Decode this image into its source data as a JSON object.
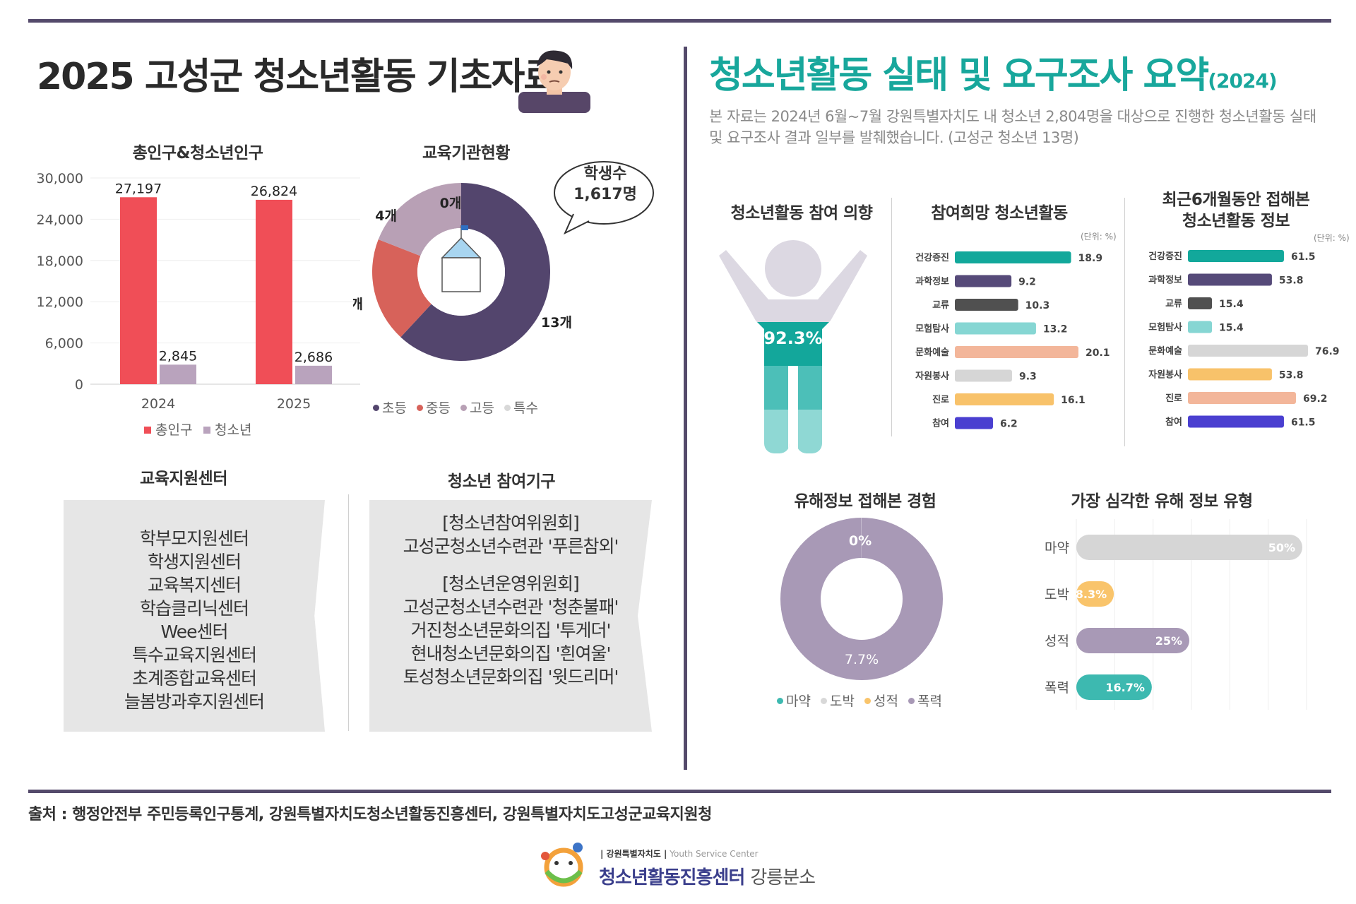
{
  "header": {
    "left_title": "2025 고성군 청소년활동 기초자료",
    "right_title": "청소년활동 실태 및 요구조사 요약",
    "right_title_year": "(2024)",
    "intro": "본 자료는 2024년 6월~7월 강원특별자치도 내 청소년 2,804명을 대상으로 진행한 청소년활동 실태 및 요구조사 결과 일부를 발췌했습니다. (고성군 청소년 13명)"
  },
  "population": {
    "title": "총인구&청소년인구",
    "y_ticks": [
      "30,000",
      "24,000",
      "18,000",
      "12,000",
      "6,000",
      "0"
    ],
    "categories": [
      "2024",
      "2025"
    ],
    "legend": [
      "총인구",
      "청소년"
    ],
    "colors": [
      "#f04e57",
      "#b9a3bd"
    ],
    "labels": [
      [
        "27,197",
        "2,845"
      ],
      [
        "26,824",
        "2,686"
      ]
    ]
  },
  "institutions": {
    "title": "교육기관현황",
    "bubble": "학생수\n1,617명",
    "legend": [
      "초등",
      "중등",
      "고등",
      "특수"
    ],
    "colors": [
      "#53456d",
      "#d7625a",
      "#b8a0b5",
      "#d8d8d8"
    ],
    "labels": [
      "13개",
      "4개",
      "4개",
      "0개"
    ]
  },
  "support": {
    "title": "교육지원센터",
    "items": [
      "학부모지원센터",
      "학생지원센터",
      "교육복지센터",
      "학습클리닉센터",
      "Wee센터",
      "특수교육지원센터",
      "초계종합교육센터",
      "늘봄방과후지원센터"
    ]
  },
  "participation": {
    "title": "청소년 참여기구",
    "lines": [
      "[청소년참여위원회]",
      "고성군청소년수련관 '푸른참외'",
      "",
      "[청소년운영위원회]",
      "고성군청소년수련관 '청춘불패'",
      "거진청소년문화의집 '투게더'",
      "현내청소년문화의집 '흰여울'",
      "토성청소년문화의집 '윗드리머'"
    ]
  },
  "intent": {
    "title": "청소년활동 참여 의향",
    "value_label": "92.3%"
  },
  "wish": {
    "title": "참여희망 청소년활동",
    "unit": "(단위: %)"
  },
  "info": {
    "title_lines": [
      "최근6개월동안 접해본",
      "청소년활동 정보"
    ],
    "unit": "(단위: %)"
  },
  "harmful": {
    "title": "유해정보 접해본 경험",
    "legend": [
      "마약",
      "도박",
      "성적",
      "폭력"
    ],
    "colors": [
      "#3db9b0",
      "#d8d8d8",
      "#f9c46b",
      "#a899b6"
    ],
    "labels": [
      "0%",
      "7.7%"
    ]
  },
  "serious": {
    "title": "가장 심각한 유해 정보 유형"
  },
  "chart_data": [
    {
      "type": "bar",
      "title": "총인구&청소년인구",
      "categories": [
        "2024",
        "2025"
      ],
      "series": [
        {
          "name": "총인구",
          "values": [
            27197,
            26824
          ]
        },
        {
          "name": "청소년",
          "values": [
            2845,
            2686
          ]
        }
      ],
      "ylim": [
        0,
        30000
      ]
    },
    {
      "type": "pie",
      "title": "교육기관현황",
      "categories": [
        "초등",
        "중등",
        "고등",
        "특수"
      ],
      "values": [
        13,
        4,
        4,
        0
      ]
    },
    {
      "type": "bar",
      "title": "참여희망 청소년활동",
      "categories": [
        "건강증진",
        "과학정보",
        "교류",
        "모험탐사",
        "문화예술",
        "자원봉사",
        "진로",
        "참여"
      ],
      "values": [
        18.9,
        9.2,
        10.3,
        13.2,
        20.1,
        9.3,
        16.1,
        6.2
      ],
      "labels": [
        "18.9",
        "9.2",
        "10.3",
        "13.2",
        "20.1",
        "9.3",
        "16.1",
        "6.2"
      ],
      "colors": [
        "#12a89b",
        "#564a79",
        "#505050",
        "#86d6d3",
        "#f3b69a",
        "#d6d6d6",
        "#f8c26a",
        "#4a3fd0"
      ]
    },
    {
      "type": "bar",
      "title": "최근6개월동안 접해본 청소년활동 정보",
      "categories": [
        "건강증진",
        "과학정보",
        "교류",
        "모험탐사",
        "문화예술",
        "자원봉사",
        "진로",
        "참여"
      ],
      "values": [
        61.5,
        53.8,
        15.4,
        15.4,
        76.9,
        53.8,
        69.2,
        61.5
      ],
      "labels": [
        "61.5",
        "53.8",
        "15.4",
        "15.4",
        "76.9",
        "53.8",
        "69.2",
        "61.5"
      ],
      "colors": [
        "#12a89b",
        "#564a79",
        "#505050",
        "#86d6d3",
        "#d6d6d6",
        "#f8c26a",
        "#f3b69a",
        "#4a3fd0"
      ]
    },
    {
      "type": "pie",
      "title": "유해정보 접해본 경험",
      "categories": [
        "마약",
        "도박",
        "성적",
        "폭력"
      ],
      "values": [
        0,
        0,
        0,
        7.7
      ]
    },
    {
      "type": "bar",
      "title": "가장 심각한 유해 정보 유형",
      "categories": [
        "마약",
        "도박",
        "성적",
        "폭력"
      ],
      "values": [
        50,
        8.3,
        25,
        16.7
      ],
      "labels": [
        "50%",
        "8.3%",
        "25%",
        "16.7%"
      ],
      "colors": [
        "#d6d6d6",
        "#f9c46b",
        "#a899b6",
        "#3db9b0"
      ],
      "xlim": [
        0,
        50
      ]
    }
  ],
  "footer": {
    "source": "출처 :  행정안전부 주민등록인구통계, 강원특별자치도청소년활동진흥센터, 강원특별자치도고성군교육지원청",
    "logo_top": "| 강원특별자치도 |",
    "logo_top_en": "Youth Service Center",
    "logo_name": "청소년활동진흥센터",
    "logo_branch": "강릉분소"
  }
}
